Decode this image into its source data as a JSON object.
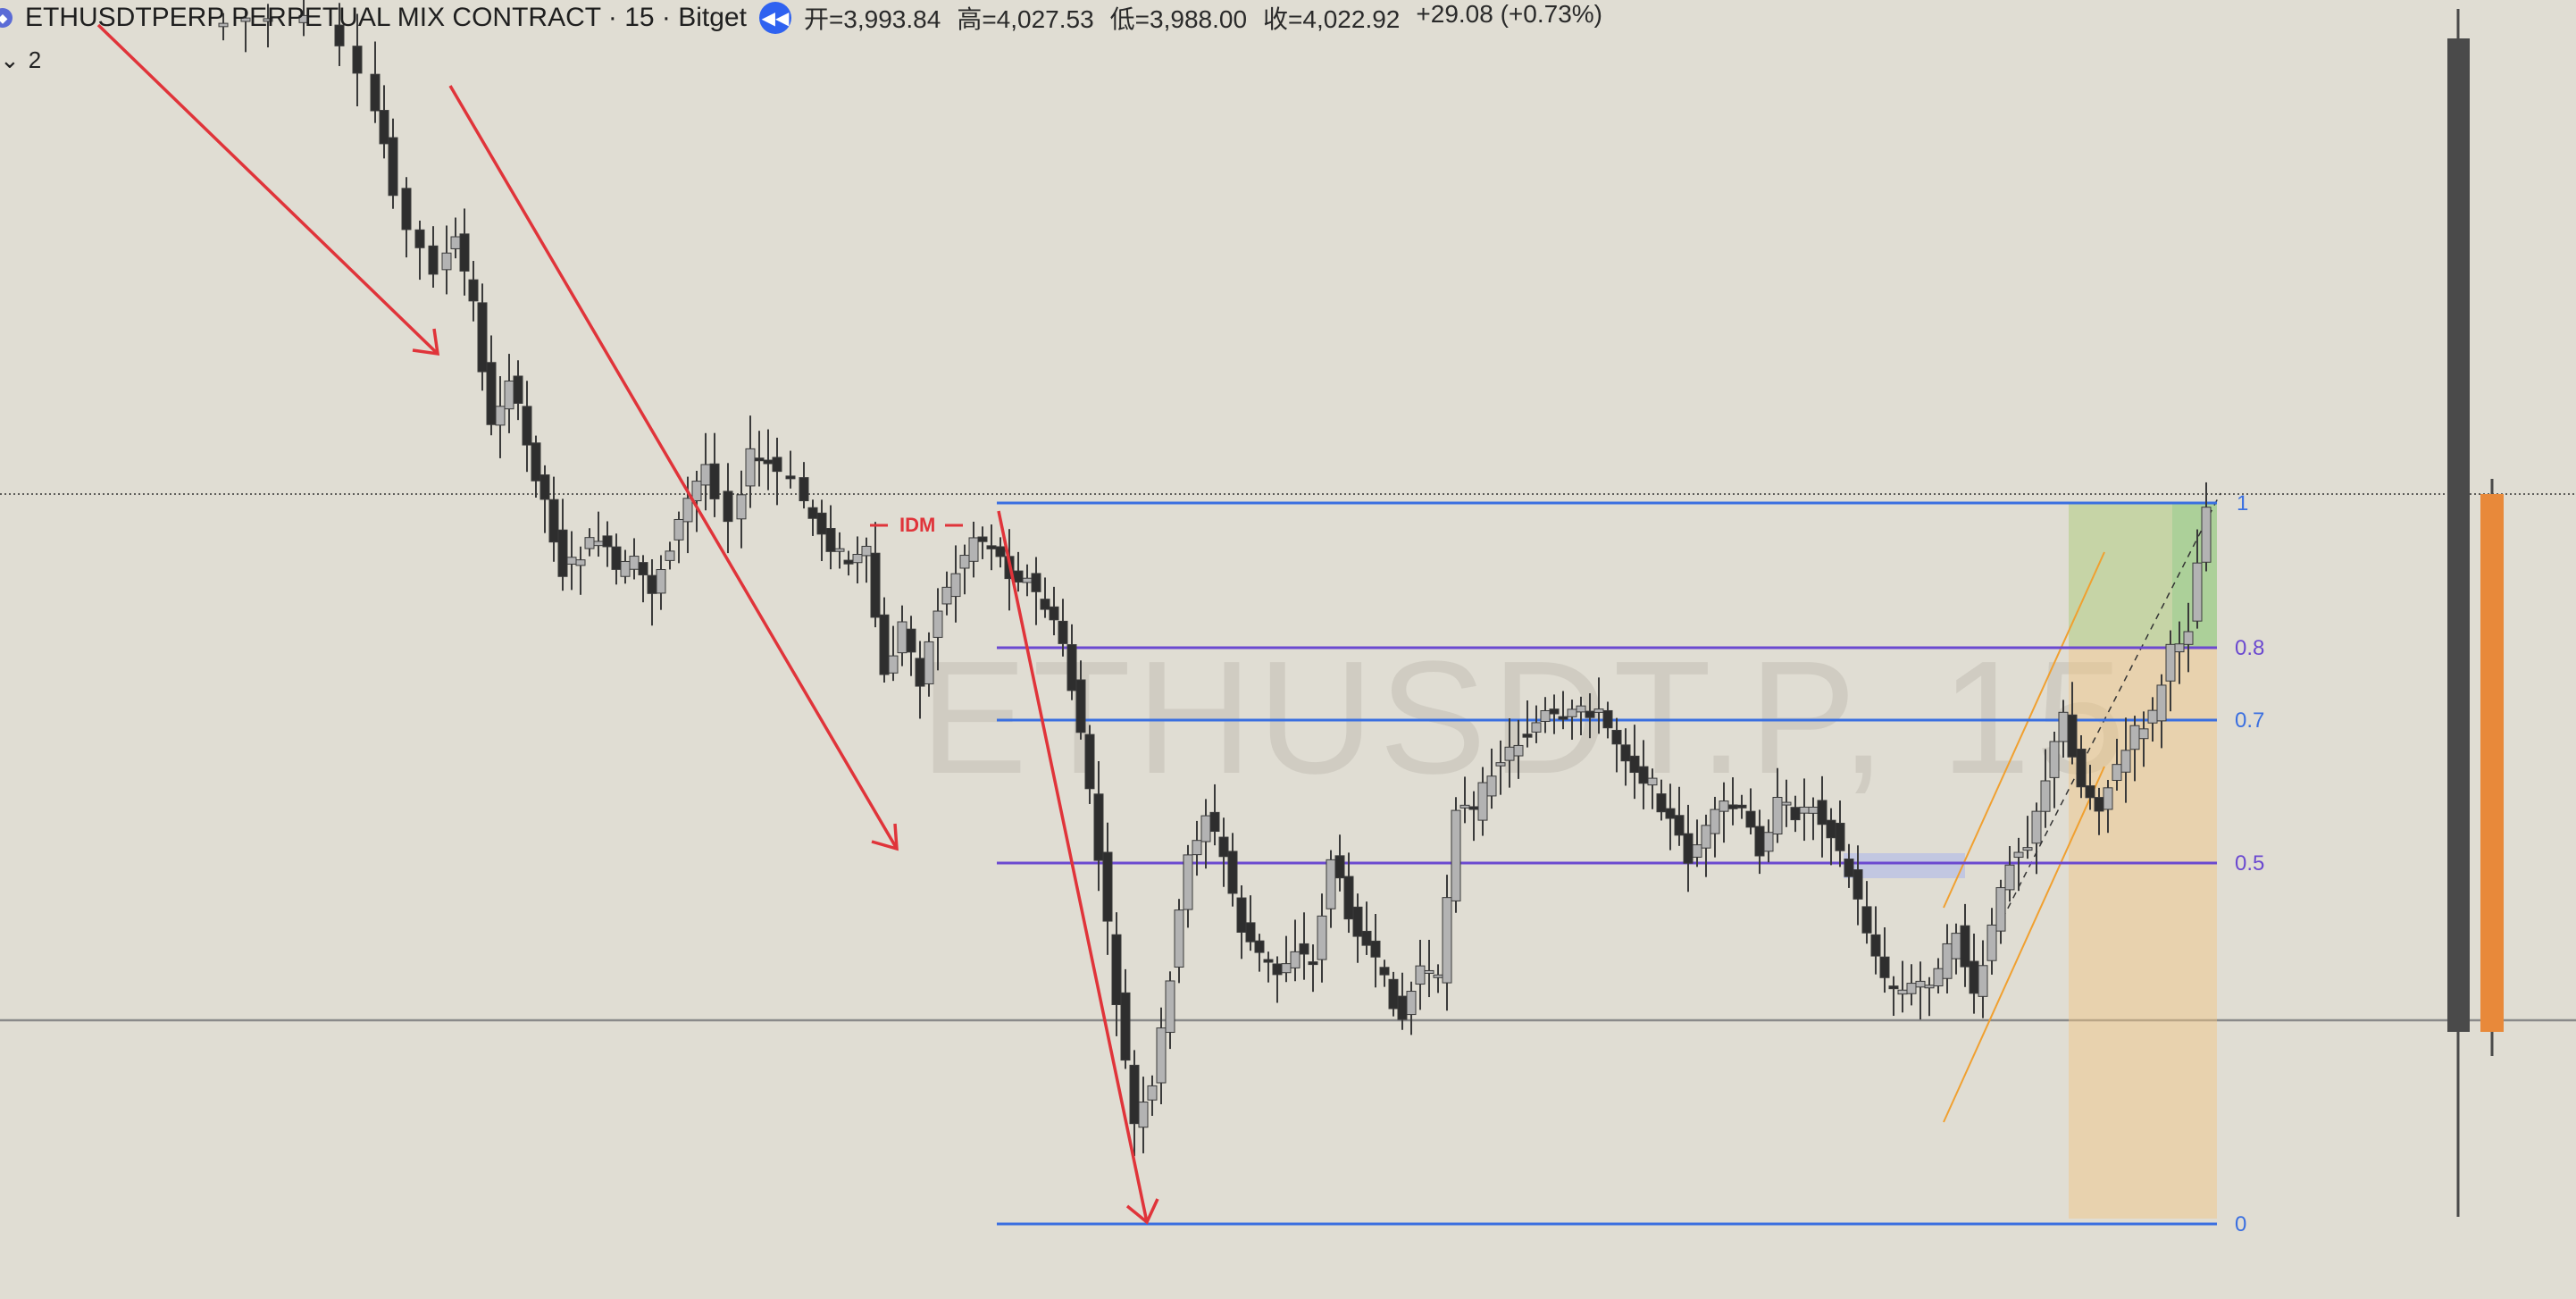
{
  "header": {
    "symbol_icon": "ethereum-icon",
    "title": "ETHUSDTPERP PERPETUAL MIX CONTRACT · 15 · Bitget",
    "replay_icon": "rewind-icon",
    "ohlc": {
      "open": "开=3,993.84",
      "high": "高=4,027.53",
      "low": "低=3,988.00",
      "close": "收=4,022.92",
      "change": "+29.08 (+0.73%)"
    }
  },
  "indicator_toggle": {
    "icon": "chevron-down-icon",
    "count": "2"
  },
  "watermark": "ETHUSDT.P, 15",
  "annotations": {
    "idm_label": "IDM"
  },
  "fib_levels": [
    {
      "label": "1",
      "color": "#3a6fe0"
    },
    {
      "label": "0.8",
      "color": "#6b49d0"
    },
    {
      "label": "0.7",
      "color": "#3a6fe0"
    },
    {
      "label": "0.5",
      "color": "#6b49d0"
    },
    {
      "label": "0",
      "color": "#3a6fe0"
    }
  ],
  "colors": {
    "background": "#e0ddd3",
    "bull_candle": "#b3b3b3",
    "bear_candle": "#2e2e2e",
    "trend_arrow": "#e0343a",
    "fib_blue": "#3a6fe0",
    "fib_purple": "#6b49d0",
    "channel": "#f0a030",
    "volume_bar_dark": "#4a4a4a",
    "volume_bar_orange": "#e8893a"
  }
}
